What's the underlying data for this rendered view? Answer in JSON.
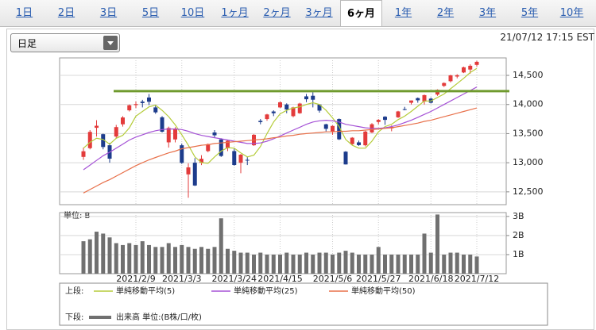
{
  "tabs": [
    "1日",
    "2日",
    "3日",
    "5日",
    "10日",
    "1ヶ月",
    "2ヶ月",
    "3ヶ月",
    "6ヶ月",
    "1年",
    "2年",
    "3年",
    "5年",
    "10年"
  ],
  "selected_tab": 8,
  "dropdown": "日足",
  "timestamp": "21/07/12 17:15 EST",
  "chart_data": {
    "type": "candlestick",
    "categories": [
      null,
      null,
      null,
      null,
      null,
      null,
      null,
      null,
      "2021/2/9",
      null,
      null,
      null,
      null,
      null,
      null,
      "2021/3/3",
      null,
      null,
      null,
      null,
      null,
      null,
      null,
      "2021/3/24",
      null,
      null,
      null,
      null,
      null,
      null,
      "2021/4/15",
      null,
      null,
      null,
      null,
      null,
      null,
      null,
      "2021/5/6",
      null,
      null,
      null,
      null,
      null,
      null,
      "2021/5/27",
      null,
      null,
      null,
      null,
      null,
      null,
      null,
      "2021/6/18",
      null,
      null,
      null,
      null,
      null,
      null,
      "2021/7/12"
    ],
    "open": [
      13100,
      13250,
      13600,
      13490,
      13300,
      13450,
      13660,
      13900,
      13990,
      14050,
      14120,
      13950,
      13780,
      13350,
      13400,
      13300,
      12800,
      13000,
      13000,
      13200,
      13520,
      13400,
      13250,
      13200,
      13000,
      13050,
      13300,
      13720,
      13750,
      13880,
      13950,
      14000,
      13800,
      13850,
      14140,
      14150,
      14000,
      13660,
      13540,
      13750,
      13190,
      13320,
      13350,
      13300,
      13520,
      13700,
      13790,
      13590,
      13780,
      13920,
      14030,
      14110,
      14050,
      14100,
      14170,
      14320,
      14400,
      14480,
      14550,
      14600,
      14680
    ],
    "high": [
      13260,
      13560,
      13730,
      13500,
      13340,
      13650,
      13800,
      14000,
      14050,
      14080,
      14180,
      13990,
      13800,
      13620,
      13610,
      13330,
      12990,
      13080,
      13130,
      13330,
      13560,
      13420,
      13390,
      13240,
      13150,
      13110,
      13490,
      13750,
      13840,
      13900,
      14050,
      14020,
      13960,
      14030,
      14180,
      14210,
      14010,
      13670,
      13640,
      13760,
      13200,
      13440,
      13380,
      13550,
      13680,
      13750,
      13800,
      13640,
      13890,
      13960,
      14070,
      14120,
      14170,
      14120,
      14260,
      14380,
      14510,
      14520,
      14650,
      14690,
      14750
    ],
    "low": [
      13050,
      13230,
      13450,
      13230,
      13000,
      13420,
      13620,
      13880,
      13940,
      13950,
      13990,
      13840,
      13520,
      13260,
      13350,
      12980,
      12400,
      12600,
      12960,
      13180,
      13430,
      13100,
      13200,
      12950,
      12820,
      12960,
      13290,
      13660,
      13720,
      13800,
      13940,
      13850,
      13780,
      13840,
      14040,
      13950,
      13860,
      13540,
      13480,
      13390,
      12970,
      13300,
      13290,
      13280,
      13510,
      13660,
      13650,
      13540,
      13770,
      13900,
      14000,
      14030,
      14000,
      14020,
      14150,
      14300,
      14380,
      14450,
      14540,
      14530,
      14650
    ],
    "close": [
      13197,
      13530,
      13635,
      13270,
      13070,
      13612,
      13777,
      13987,
      14007,
      14025,
      14047,
      13865,
      13533,
      13597,
      13588,
      12998,
      12920,
      12609,
      13068,
      13319,
      13471,
      13116,
      13377,
      12961,
      13138,
      13045,
      13480,
      13698,
      13829,
      13850,
      14038,
      13914,
      13950,
      14016,
      14090,
      14082,
      13895,
      13582,
      13632,
      13402,
      12971,
      13430,
      13303,
      13535,
      13661,
      13736,
      13736,
      13614,
      13881,
      13911,
      14069,
      14072,
      14161,
      14030,
      14253,
      14369,
      14500,
      14503,
      14639,
      14665,
      14733
    ],
    "up_color": "#e33b3b",
    "down_color": "#1d3c8c",
    "series": [
      {
        "name": "単純移動平均(5)",
        "color": "#b5cc3a",
        "values": [
          13250,
          13350,
          13420,
          13400,
          13320,
          13420,
          13470,
          13600,
          13800,
          13880,
          13960,
          13990,
          13900,
          13790,
          13650,
          13480,
          13300,
          13100,
          13000,
          12990,
          13100,
          13200,
          13260,
          13250,
          13170,
          13100,
          13130,
          13280,
          13500,
          13700,
          13840,
          13900,
          13940,
          13960,
          14000,
          14030,
          14000,
          13900,
          13770,
          13620,
          13400,
          13300,
          13250,
          13250,
          13370,
          13530,
          13620,
          13660,
          13740,
          13800,
          13880,
          13970,
          14060,
          14060,
          14120,
          14180,
          14270,
          14360,
          14450,
          14550,
          14620
        ]
      },
      {
        "name": "単純移動平均(25)",
        "color": "#a552d6",
        "values": [
          12880,
          12960,
          13040,
          13120,
          13180,
          13250,
          13320,
          13390,
          13440,
          13480,
          13520,
          13550,
          13570,
          13580,
          13580,
          13570,
          13540,
          13500,
          13470,
          13450,
          13430,
          13410,
          13390,
          13370,
          13350,
          13330,
          13330,
          13340,
          13370,
          13410,
          13460,
          13510,
          13560,
          13610,
          13660,
          13700,
          13720,
          13730,
          13720,
          13700,
          13660,
          13640,
          13620,
          13600,
          13590,
          13590,
          13600,
          13620,
          13650,
          13690,
          13730,
          13780,
          13830,
          13880,
          13940,
          14000,
          14060,
          14120,
          14180,
          14240,
          14300
        ]
      },
      {
        "name": "単純移動平均(50)",
        "color": "#e8704a",
        "values": [
          12480,
          12540,
          12600,
          12660,
          12710,
          12770,
          12830,
          12890,
          12950,
          13000,
          13050,
          13090,
          13130,
          13170,
          13200,
          13240,
          13260,
          13280,
          13300,
          13310,
          13330,
          13340,
          13350,
          13360,
          13370,
          13380,
          13390,
          13400,
          13410,
          13430,
          13440,
          13460,
          13470,
          13490,
          13500,
          13510,
          13520,
          13530,
          13530,
          13540,
          13540,
          13550,
          13550,
          13560,
          13570,
          13580,
          13590,
          13600,
          13620,
          13640,
          13660,
          13680,
          13710,
          13730,
          13760,
          13790,
          13820,
          13850,
          13880,
          13910,
          13940
        ]
      }
    ],
    "ylim": [
      12280,
      14800
    ],
    "yticks": [
      {
        "value": 12500,
        "label": "12,500"
      },
      {
        "value": 13000,
        "label": "13,000"
      },
      {
        "value": 13500,
        "label": "13,500"
      },
      {
        "value": 14000,
        "label": "14,000"
      },
      {
        "value": 14500,
        "label": "14,500"
      }
    ],
    "grid": true,
    "hline": {
      "value": 14230,
      "color": "#6f9a2e"
    },
    "volume": {
      "label": "単位: B",
      "name": "出来高 単位:(B株/口/枚)",
      "color": "#707070",
      "values": [
        1.7,
        1.8,
        2.2,
        2.1,
        1.9,
        1.6,
        1.5,
        1.6,
        1.5,
        1.7,
        1.5,
        1.4,
        1.4,
        1.6,
        1.4,
        1.5,
        1.4,
        1.3,
        1.4,
        1.3,
        1.4,
        2.9,
        1.3,
        1.2,
        1.1,
        1.1,
        1.0,
        1.1,
        1.0,
        1.0,
        1.0,
        1.1,
        1.0,
        1.0,
        1.1,
        1.0,
        1.1,
        1.1,
        1.0,
        1.1,
        1.2,
        1.1,
        1.0,
        1.0,
        1.0,
        1.4,
        1.0,
        1.0,
        1.0,
        1.0,
        1.0,
        1.0,
        2.1,
        1.1,
        3.1,
        1.0,
        1.1,
        1.1,
        1.0,
        1.0,
        0.9
      ],
      "ylim": [
        0,
        3.2
      ],
      "yticks": [
        {
          "value": 1,
          "label": "1B"
        },
        {
          "value": 2,
          "label": "2B"
        },
        {
          "value": 3,
          "label": "3B"
        }
      ]
    },
    "legend": {
      "upper": "上段:",
      "lower": "下段:"
    }
  }
}
